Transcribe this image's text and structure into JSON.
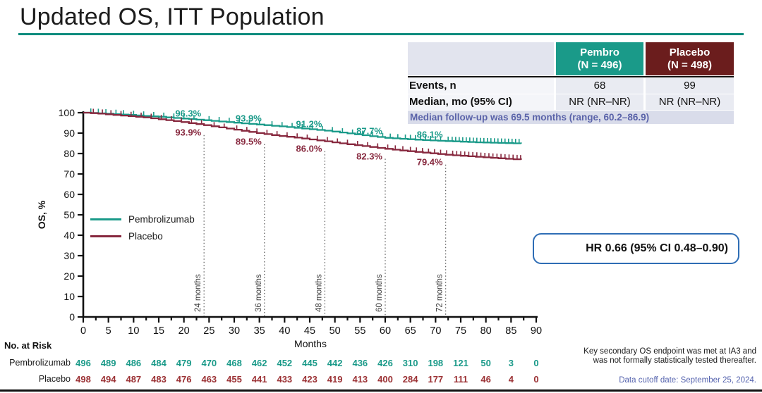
{
  "slide": {
    "title": "Updated OS, ITT Population",
    "accent_color": "#0F8C7E"
  },
  "summary_table": {
    "header": {
      "pembro_line1": "Pembro",
      "pembro_line2": "(N = 496)",
      "placebo_line1": "Placebo",
      "placebo_line2": "(N = 498)",
      "pembro_bg": "#1A9A89",
      "placebo_bg": "#6B1D1D"
    },
    "rows": [
      {
        "label": "Events, n",
        "pembro": "68",
        "placebo": "99"
      },
      {
        "label": "Median, mo (95% CI)",
        "pembro": "NR (NR–NR)",
        "placebo": "NR (NR–NR)"
      }
    ],
    "followup_note": "Median follow-up was 69.5 months (range, 60.2–86.9)"
  },
  "hr_box": {
    "text": "HR 0.66 (95% CI 0.48–0.90)",
    "border_color": "#2E6DB5"
  },
  "footnotes": {
    "line1": "Key secondary OS endpoint was met at IA3 and",
    "line2": "was not formally statistically tested thereafter.",
    "cutoff": "Data cutoff date: September 25, 2024."
  },
  "risk_table": {
    "title": "No. at Risk",
    "months": [
      0,
      5,
      10,
      15,
      20,
      25,
      30,
      35,
      40,
      45,
      50,
      55,
      60,
      65,
      70,
      75,
      80,
      85,
      90
    ],
    "rows": [
      {
        "label": "Pembrolizumab",
        "color": "#1A9A89",
        "values": [
          496,
          489,
          486,
          484,
          479,
          470,
          468,
          462,
          452,
          445,
          442,
          436,
          426,
          310,
          198,
          121,
          50,
          3,
          0
        ]
      },
      {
        "label": "Placebo",
        "color": "#9B3134",
        "values": [
          498,
          494,
          487,
          483,
          476,
          463,
          455,
          441,
          433,
          423,
          419,
          413,
          400,
          284,
          177,
          111,
          46,
          4,
          0
        ]
      }
    ]
  },
  "chart_data": {
    "type": "line",
    "subtype": "kaplan-meier",
    "title": "Updated OS, ITT Population",
    "xlabel": "Months",
    "ylabel": "OS, %",
    "xlim": [
      0,
      90
    ],
    "ylim": [
      0,
      100
    ],
    "xticks": [
      0,
      5,
      10,
      15,
      20,
      25,
      30,
      35,
      40,
      45,
      50,
      55,
      60,
      65,
      70,
      75,
      80,
      85,
      90
    ],
    "yticks": [
      0,
      10,
      20,
      30,
      40,
      50,
      60,
      70,
      80,
      90,
      100
    ],
    "grid": false,
    "legend_position": "inside-left",
    "series": [
      {
        "name": "Pembrolizumab",
        "color": "#1A9A89",
        "points": [
          [
            0,
            100
          ],
          [
            3,
            99.7
          ],
          [
            6,
            99.3
          ],
          [
            9,
            98.9
          ],
          [
            12,
            98.4
          ],
          [
            15,
            98.0
          ],
          [
            18,
            97.4
          ],
          [
            21,
            96.9
          ],
          [
            24,
            96.3
          ],
          [
            27,
            95.7
          ],
          [
            30,
            95.1
          ],
          [
            33,
            94.5
          ],
          [
            36,
            93.9
          ],
          [
            39,
            93.3
          ],
          [
            42,
            92.6
          ],
          [
            45,
            91.9
          ],
          [
            48,
            91.2
          ],
          [
            51,
            90.3
          ],
          [
            54,
            89.4
          ],
          [
            57,
            88.5
          ],
          [
            60,
            87.7
          ],
          [
            63,
            87.2
          ],
          [
            66,
            86.8
          ],
          [
            69,
            86.4
          ],
          [
            72,
            86.1
          ],
          [
            75,
            85.8
          ],
          [
            78,
            85.5
          ],
          [
            81,
            85.3
          ],
          [
            84,
            85.1
          ],
          [
            87,
            84.9
          ]
        ],
        "censor_ticks": [
          1.5,
          3,
          4.5,
          6.5,
          8,
          10,
          12,
          14,
          16,
          18,
          20,
          22,
          25,
          27,
          29,
          31,
          33,
          35,
          37.5,
          39.5,
          41.5,
          43.5,
          45.5,
          47.5,
          49.5,
          51.5,
          53.5,
          55.5,
          57.5,
          59.5,
          61,
          62.5,
          64,
          65,
          66,
          67,
          68,
          69,
          70,
          71,
          72.5,
          73.3,
          74,
          74.7,
          75.4,
          76.1,
          76.8,
          77.5,
          78.2,
          78.9,
          79.6,
          80.3,
          81,
          81.7,
          82.4,
          83.1,
          83.8,
          84.5,
          85.2,
          85.9,
          86.6
        ]
      },
      {
        "name": "Placebo",
        "color": "#87283E",
        "points": [
          [
            0,
            100
          ],
          [
            3,
            99.5
          ],
          [
            6,
            98.9
          ],
          [
            9,
            98.3
          ],
          [
            12,
            97.7
          ],
          [
            15,
            96.8
          ],
          [
            18,
            95.9
          ],
          [
            21,
            94.9
          ],
          [
            24,
            93.9
          ],
          [
            27,
            92.8
          ],
          [
            30,
            91.7
          ],
          [
            33,
            90.6
          ],
          [
            36,
            89.5
          ],
          [
            39,
            88.6
          ],
          [
            42,
            87.8
          ],
          [
            45,
            86.9
          ],
          [
            48,
            86.0
          ],
          [
            51,
            85.0
          ],
          [
            54,
            84.1
          ],
          [
            57,
            83.2
          ],
          [
            60,
            82.3
          ],
          [
            63,
            81.5
          ],
          [
            66,
            80.8
          ],
          [
            69,
            80.1
          ],
          [
            72,
            79.4
          ],
          [
            75,
            78.9
          ],
          [
            78,
            78.4
          ],
          [
            81,
            77.9
          ],
          [
            84,
            77.4
          ],
          [
            87,
            77.0
          ]
        ],
        "censor_ticks": [
          2,
          3.8,
          5.5,
          7.5,
          9.5,
          11.5,
          13.5,
          15.5,
          17.5,
          19.5,
          21.5,
          23.5,
          26,
          28,
          30.5,
          32.5,
          34.5,
          36.5,
          38.5,
          40.5,
          42.5,
          44.5,
          46.5,
          48.5,
          50.5,
          52.5,
          54.5,
          56.5,
          58.5,
          60.5,
          62,
          63.5,
          65,
          66.2,
          67.4,
          68.6,
          69.8,
          71,
          72.2,
          73.4,
          74.2,
          75,
          75.8,
          76.6,
          77.4,
          78.2,
          79,
          79.8,
          80.6,
          81.4,
          82.2,
          83,
          83.8,
          84.6,
          85.4,
          86.2,
          86.9
        ]
      }
    ],
    "landmarks": [
      {
        "month": 24,
        "label": "24 months",
        "pembro": "96.3%",
        "placebo": "93.9%"
      },
      {
        "month": 36,
        "label": "36 months",
        "pembro": "93.9%",
        "placebo": "89.5%"
      },
      {
        "month": 48,
        "label": "48 months",
        "pembro": "91.2%",
        "placebo": "86.0%"
      },
      {
        "month": 60,
        "label": "60 months",
        "pembro": "87.7%",
        "placebo": "82.3%"
      },
      {
        "month": 72,
        "label": "72 months",
        "pembro": "86.1%",
        "placebo": "79.4%"
      }
    ]
  }
}
